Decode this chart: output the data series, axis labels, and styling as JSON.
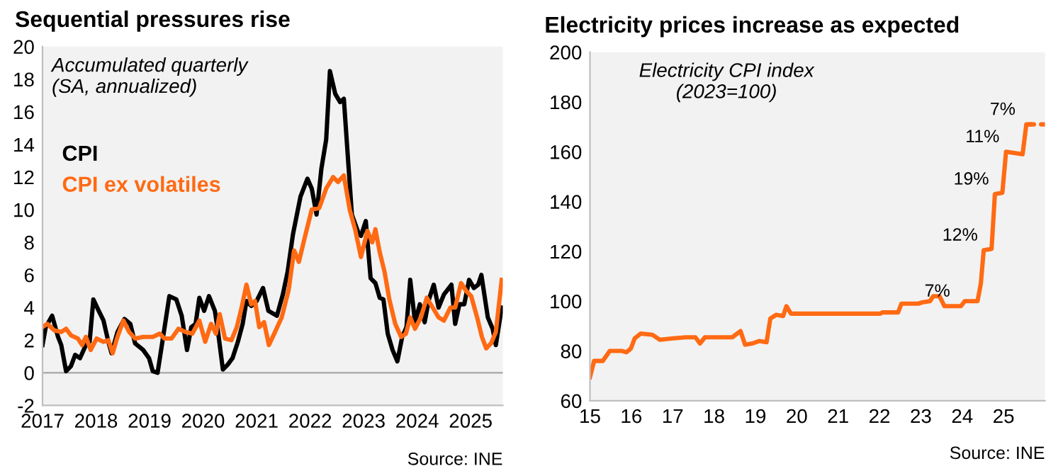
{
  "chart_data": [
    {
      "type": "line",
      "title": "Sequential pressures rise",
      "legend": "top left",
      "series": [
        {
          "name": "CPI",
          "color": "#000000",
          "x": [
            2017.0,
            2017.06,
            2017.18,
            2017.29,
            2017.35,
            2017.44,
            2017.53,
            2017.61,
            2017.7,
            2017.81,
            2017.88,
            2017.95,
            2018.05,
            2018.14,
            2018.23,
            2018.29,
            2018.4,
            2018.53,
            2018.64,
            2018.73,
            2018.88,
            2018.99,
            2019.06,
            2019.15,
            2019.23,
            2019.3,
            2019.37,
            2019.5,
            2019.6,
            2019.7,
            2019.78,
            2019.86,
            2019.93,
            2020.02,
            2020.11,
            2020.22,
            2020.28,
            2020.37,
            2020.46,
            2020.55,
            2020.65,
            2020.74,
            2020.81,
            2020.9,
            2021.0,
            2021.12,
            2021.22,
            2021.38,
            2021.49,
            2021.58,
            2021.68,
            2021.82,
            2021.95,
            2022.03,
            2022.12,
            2022.21,
            2022.3,
            2022.37,
            2022.47,
            2022.56,
            2022.63,
            2022.78,
            2022.91,
            2022.95,
            2023.04,
            2023.13,
            2023.22,
            2023.3,
            2023.37,
            2023.45,
            2023.54,
            2023.63,
            2023.72,
            2023.8,
            2023.87,
            2023.96,
            2024.05,
            2024.14,
            2024.22,
            2024.31,
            2024.4,
            2024.5,
            2024.64,
            2024.71,
            2024.79,
            2024.88,
            2024.97,
            2025.06,
            2025.14,
            2025.2,
            2025.32,
            2025.41,
            2025.47,
            2025.58
          ],
          "values": [
            1.7,
            2.8,
            3.5,
            2.2,
            1.7,
            0.1,
            0.4,
            1.1,
            0.9,
            1.7,
            1.9,
            4.5,
            3.8,
            3.2,
            1.9,
            1.2,
            2.5,
            3.3,
            3.0,
            1.8,
            1.4,
            0.9,
            0.1,
            0.0,
            1.7,
            3.2,
            4.7,
            4.5,
            3.5,
            1.4,
            2.8,
            3.0,
            4.6,
            3.8,
            4.7,
            3.8,
            2.5,
            0.2,
            0.5,
            0.9,
            1.9,
            3.0,
            4.4,
            4.1,
            4.4,
            5.2,
            3.8,
            3.5,
            4.8,
            6.2,
            8.5,
            10.8,
            11.9,
            11.3,
            9.7,
            12.5,
            14.3,
            18.5,
            17.1,
            16.6,
            16.8,
            9.7,
            8.5,
            8.4,
            9.3,
            5.8,
            5.5,
            4.6,
            4.5,
            2.4,
            1.4,
            0.7,
            2.2,
            2.8,
            5.7,
            3.1,
            4.2,
            3.1,
            4.5,
            5.4,
            4.0,
            4.8,
            5.4,
            3.0,
            4.2,
            4.2,
            5.7,
            5.2,
            5.4,
            6.0,
            3.4,
            2.7,
            1.7,
            4.0
          ]
        },
        {
          "name": "CPI ex volatiles",
          "color": "#ff6a13",
          "x": [
            2017.0,
            2017.09,
            2017.22,
            2017.35,
            2017.44,
            2017.53,
            2017.66,
            2017.74,
            2017.81,
            2017.9,
            2018.01,
            2018.14,
            2018.23,
            2018.31,
            2018.4,
            2018.51,
            2018.62,
            2018.73,
            2018.88,
            2019.06,
            2019.19,
            2019.28,
            2019.41,
            2019.54,
            2019.67,
            2019.8,
            2019.93,
            2020.04,
            2020.15,
            2020.24,
            2020.31,
            2020.41,
            2020.53,
            2020.63,
            2020.72,
            2020.81,
            2020.9,
            2020.97,
            2021.05,
            2021.14,
            2021.23,
            2021.33,
            2021.47,
            2021.6,
            2021.7,
            2021.79,
            2021.9,
            2022.03,
            2022.17,
            2022.3,
            2022.43,
            2022.52,
            2022.63,
            2022.74,
            2022.84,
            2022.95,
            2023.07,
            2023.16,
            2023.22,
            2023.3,
            2023.39,
            2023.48,
            2023.59,
            2023.7,
            2023.79,
            2023.87,
            2023.96,
            2024.07,
            2024.18,
            2024.29,
            2024.4,
            2024.5,
            2024.62,
            2024.71,
            2024.82,
            2024.92,
            2025.01,
            2025.12,
            2025.21,
            2025.29,
            2025.38,
            2025.47,
            2025.58
          ],
          "values": [
            2.8,
            3.0,
            2.6,
            2.5,
            2.7,
            2.3,
            2.1,
            1.7,
            2.2,
            1.4,
            2.1,
            1.9,
            2.0,
            1.2,
            2.2,
            3.2,
            2.5,
            2.1,
            2.2,
            2.2,
            2.4,
            2.1,
            2.1,
            2.7,
            2.5,
            2.4,
            3.2,
            1.9,
            3.0,
            2.4,
            3.6,
            2.1,
            2.0,
            2.8,
            4.0,
            5.4,
            4.2,
            4.4,
            2.8,
            3.1,
            1.7,
            2.4,
            3.4,
            5.1,
            7.5,
            6.8,
            8.3,
            10.0,
            10.1,
            11.3,
            12.0,
            11.7,
            12.1,
            10.0,
            8.8,
            7.1,
            8.7,
            8.0,
            8.8,
            7.4,
            6.2,
            4.5,
            3.0,
            2.2,
            2.4,
            3.4,
            2.7,
            3.4,
            4.6,
            4.0,
            3.4,
            3.2,
            4.0,
            4.0,
            5.5,
            5.0,
            4.7,
            3.4,
            2.2,
            1.5,
            1.8,
            2.5,
            5.7
          ]
        }
      ],
      "xlim": [
        2017,
        2025.6
      ],
      "xticks": [
        2017,
        2018,
        2019,
        2020,
        2021,
        2022,
        2023,
        2024,
        2025
      ],
      "ylim": [
        -2,
        20
      ],
      "yticks": [
        -2,
        0,
        2,
        4,
        6,
        8,
        10,
        12,
        14,
        16,
        18,
        20
      ],
      "ref_lines": [
        {
          "axis": "y",
          "value": 0,
          "color": "#a6a6a6"
        }
      ],
      "annotations": [
        "Accumulated quarterly\n(SA, annualized)",
        "Source: INE"
      ]
    },
    {
      "type": "line",
      "title": "Electricity prices increase as expected",
      "series": [
        {
          "color": "#ff6a13",
          "x": [
            15.0,
            15.1,
            15.31,
            15.48,
            15.77,
            15.88,
            15.99,
            16.08,
            16.23,
            16.51,
            16.69,
            16.97,
            17.32,
            17.55,
            17.66,
            17.78,
            18.12,
            18.44,
            18.64,
            18.75,
            18.92,
            19.09,
            19.27,
            19.36,
            19.5,
            19.67,
            19.75,
            19.86,
            22.02,
            22.08,
            22.45,
            22.53,
            22.94,
            23.03,
            23.22,
            23.3,
            23.45,
            23.57,
            23.97,
            24.06,
            24.37,
            24.45,
            24.52,
            24.71,
            24.79,
            24.97,
            25.06,
            25.46,
            25.55,
            25.63
          ],
          "values": [
            69.5,
            76,
            76,
            80,
            80,
            79.5,
            81,
            85,
            87,
            86.5,
            84.5,
            85,
            85.5,
            85.5,
            83,
            85.5,
            85.5,
            85.5,
            88,
            82.5,
            83,
            84,
            83.5,
            93,
            94.5,
            94,
            98,
            95,
            95,
            95.5,
            95.5,
            99,
            99,
            99.5,
            100,
            102,
            102,
            98,
            98,
            100,
            100,
            107,
            120.5,
            121,
            143,
            143.5,
            160,
            159,
            171,
            171
          ]
        },
        {
          "color": "#ff6a13",
          "line_style": "dotted",
          "x": [
            25.63,
            25.98
          ],
          "values": [
            171,
            171
          ]
        }
      ],
      "xlim": [
        15,
        26
      ],
      "xticks": [
        15,
        16,
        17,
        18,
        19,
        20,
        21,
        22,
        23,
        24,
        25
      ],
      "ylim": [
        60,
        200
      ],
      "yticks": [
        60,
        80,
        100,
        120,
        140,
        160,
        180,
        200
      ],
      "annotations": [
        "Electricity CPI index\n(2023=100)",
        "Source: INE",
        {
          "text": "7%",
          "x": 23.97,
          "y": 98
        },
        {
          "text": "12%",
          "x": 24.52,
          "y": 120.5
        },
        {
          "text": "19%",
          "x": 24.79,
          "y": 143
        },
        {
          "text": "11%",
          "x": 25.06,
          "y": 160
        },
        {
          "text": "7%",
          "x": 25.55,
          "y": 171
        }
      ]
    }
  ]
}
